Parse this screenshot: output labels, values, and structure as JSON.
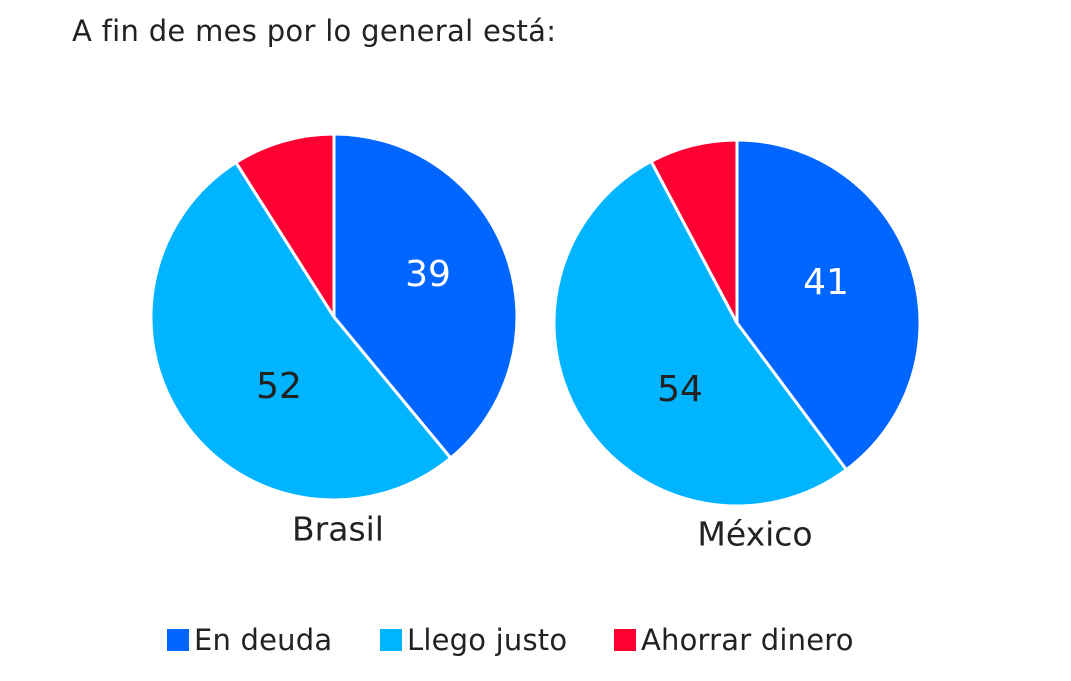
{
  "title": "A fin de mes por lo general está:",
  "colors": {
    "en_deuda": "#0066FF",
    "llego_justo": "#00B4FF",
    "ahorrar": "#FF0033",
    "label_light": "#FFFFFF",
    "label_dark": "#222222"
  },
  "legend": {
    "items": [
      {
        "label": "En deuda",
        "color": "#0066FF"
      },
      {
        "label": "Llego justo",
        "color": "#00B4FF"
      },
      {
        "label": "Ahorrar dinero",
        "color": "#FF0033"
      }
    ]
  },
  "chart_data": [
    {
      "type": "pie",
      "title": "Brasil",
      "categories": [
        "En deuda",
        "Llego justo",
        "Ahorrar dinero"
      ],
      "values": [
        39,
        52,
        9
      ],
      "data_labels": [
        "39",
        "52",
        ""
      ]
    },
    {
      "type": "pie",
      "title": "México",
      "categories": [
        "En deuda",
        "Llego justo",
        "Ahorrar dinero"
      ],
      "values": [
        41,
        54,
        8
      ],
      "data_labels": [
        "41",
        "54",
        ""
      ]
    }
  ]
}
